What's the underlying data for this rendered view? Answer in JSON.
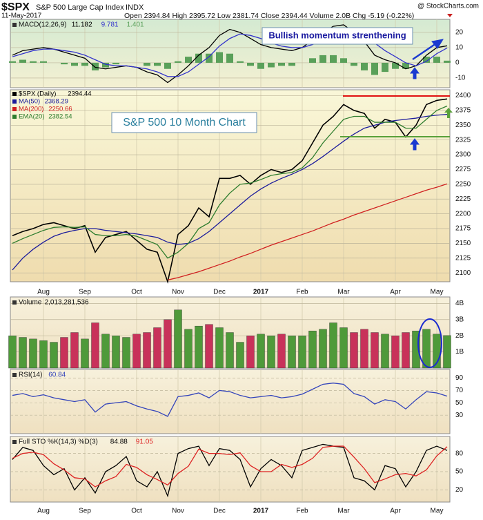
{
  "header": {
    "symbol": "$SPX",
    "name": "S&P 500 Large Cap Index",
    "exchange": "INDX",
    "source": "@ StockCharts.com",
    "date": "11-May-2017",
    "stats": "Open 2394.84 High 2395.72 Low 2381.74 Close 2394.44 Volume 2.0B Chg -5.19 (-0.22%)"
  },
  "chart_data": [
    {
      "type": "line",
      "title": "MACD(12,26,9)",
      "annotation": "Bullish momentum strenthening",
      "ylim": [
        -16.4,
        28.6
      ],
      "yticks": [
        -10,
        0,
        10,
        20
      ],
      "series": [
        {
          "type": "bar",
          "color": "#5aa05a",
          "values": [
            1,
            2,
            1,
            1,
            0,
            -1,
            -2,
            -2,
            -5,
            -3,
            -1,
            0,
            0,
            -2,
            -2,
            -4,
            1,
            4,
            6,
            6,
            7,
            6,
            1,
            -2,
            -4,
            -3,
            -2,
            -2,
            0,
            3,
            5,
            5,
            3,
            -2,
            -5,
            -8,
            -6,
            -4,
            -4,
            0,
            4,
            4,
            1.401
          ]
        },
        {
          "color": "#000000",
          "values": [
            5,
            8,
            9,
            10,
            9,
            7,
            5,
            3,
            -3,
            -4,
            -3,
            -2,
            -3,
            -6,
            -8,
            -13,
            -8,
            -2,
            5,
            10,
            18,
            22,
            20,
            16,
            12,
            10,
            9,
            8,
            10,
            15,
            20,
            24,
            25,
            20,
            14,
            5,
            2,
            0,
            -4,
            -2,
            5,
            10,
            11.182
          ]
        },
        {
          "color": "#3333cc",
          "values": [
            4,
            6,
            8,
            9,
            9,
            8,
            7,
            5,
            2,
            -1,
            -2,
            -2,
            -3,
            -4,
            -6,
            -9,
            -9,
            -6,
            -1,
            4,
            11,
            16,
            19,
            18,
            16,
            13,
            11,
            10,
            10,
            12,
            15,
            19,
            22,
            22,
            19,
            13,
            8,
            4,
            0,
            -2,
            1,
            6,
            9.781
          ]
        }
      ]
    },
    {
      "type": "line",
      "annotation": "S&P 500 10 Month Chart",
      "categories": [
        null,
        null,
        null,
        "Aug",
        null,
        null,
        null,
        "Sep",
        null,
        null,
        null,
        null,
        "Oct",
        null,
        null,
        null,
        "Nov",
        null,
        null,
        null,
        "Dec",
        null,
        null,
        null,
        "2017",
        null,
        null,
        null,
        "Feb",
        null,
        null,
        null,
        "Mar",
        null,
        null,
        null,
        null,
        "Apr",
        null,
        null,
        null,
        "May",
        null
      ],
      "ylim": [
        2085,
        2410
      ],
      "yticks": [
        2100,
        2125,
        2150,
        2175,
        2200,
        2225,
        2250,
        2275,
        2300,
        2325,
        2350,
        2375,
        2400
      ],
      "series": [
        {
          "name": "$SPX (Daily)",
          "color": "#000000",
          "values": [
            2163,
            2170,
            2175,
            2182,
            2185,
            2180,
            2175,
            2180,
            2135,
            2160,
            2165,
            2170,
            2155,
            2140,
            2135,
            2085,
            2165,
            2180,
            2210,
            2195,
            2260,
            2260,
            2265,
            2250,
            2265,
            2275,
            2270,
            2275,
            2290,
            2320,
            2350,
            2365,
            2385,
            2375,
            2370,
            2345,
            2360,
            2355,
            2330,
            2350,
            2385,
            2392,
            2394.44
          ]
        },
        {
          "name": "MA(50)",
          "color": "#1c1c9c",
          "values": [
            2105,
            2125,
            2140,
            2152,
            2162,
            2168,
            2172,
            2175,
            2175,
            2172,
            2170,
            2168,
            2166,
            2163,
            2160,
            2152,
            2148,
            2150,
            2158,
            2170,
            2185,
            2200,
            2215,
            2230,
            2242,
            2252,
            2260,
            2267,
            2275,
            2285,
            2297,
            2310,
            2323,
            2335,
            2345,
            2350,
            2355,
            2358,
            2360,
            2362,
            2365,
            2367,
            2368.29
          ]
        },
        {
          "name": "MA(200)",
          "color": "#d02020",
          "values": [
            null,
            null,
            null,
            null,
            null,
            null,
            null,
            null,
            null,
            null,
            null,
            null,
            null,
            null,
            null,
            2088,
            2092,
            2097,
            2102,
            2108,
            2114,
            2120,
            2127,
            2133,
            2140,
            2147,
            2153,
            2159,
            2165,
            2171,
            2178,
            2185,
            2191,
            2198,
            2204,
            2210,
            2216,
            2222,
            2228,
            2234,
            2240,
            2245,
            2250.66
          ]
        },
        {
          "name": "EMA(20)",
          "color": "#2e7d2e",
          "values": [
            2150,
            2158,
            2165,
            2172,
            2177,
            2178,
            2177,
            2178,
            2165,
            2163,
            2163,
            2165,
            2162,
            2155,
            2148,
            2125,
            2135,
            2150,
            2175,
            2185,
            2215,
            2235,
            2250,
            2252,
            2258,
            2265,
            2268,
            2270,
            2278,
            2295,
            2320,
            2340,
            2360,
            2365,
            2365,
            2355,
            2355,
            2355,
            2345,
            2345,
            2360,
            2375,
            2382.54
          ]
        }
      ]
    },
    {
      "type": "bar",
      "title": "Volume",
      "up_color": "#4f9a3a",
      "down_color": "#c8325a",
      "ylim": [
        0,
        4.4
      ],
      "yticks": [
        {
          "value": 1,
          "label": "1B"
        },
        {
          "value": 2,
          "label": "2B"
        },
        {
          "value": 3,
          "label": "3B"
        },
        {
          "value": 4,
          "label": "4B"
        }
      ],
      "values": [
        2.0,
        1.9,
        1.8,
        1.7,
        1.6,
        1.9,
        2.2,
        1.8,
        2.8,
        2.1,
        2.0,
        1.9,
        2.1,
        2.2,
        2.5,
        3.0,
        3.6,
        2.4,
        2.6,
        2.7,
        2.5,
        2.2,
        1.6,
        2.0,
        2.1,
        2.0,
        2.1,
        2.0,
        2.0,
        2.3,
        2.4,
        2.8,
        2.5,
        2.2,
        2.4,
        2.2,
        2.1,
        2.0,
        2.2,
        2.3,
        2.4,
        2.1,
        2.013281536
      ],
      "value_labels": [
        null,
        null,
        null,
        null,
        null,
        null,
        null,
        null,
        null,
        null,
        null,
        null,
        null,
        null,
        null,
        null,
        null,
        null,
        null,
        null,
        null,
        null,
        null,
        null,
        null,
        null,
        null,
        null,
        null,
        null,
        null,
        null,
        null,
        null,
        null,
        null,
        null,
        null,
        null,
        null,
        null,
        null,
        "2,013,281,536"
      ]
    },
    {
      "type": "line",
      "title": "RSI(14)",
      "ylim": [
        0,
        104
      ],
      "yticks": [
        30,
        50,
        70,
        90
      ],
      "series": [
        {
          "color": "#3344bb",
          "values": [
            62,
            65,
            60,
            63,
            58,
            55,
            52,
            55,
            35,
            48,
            50,
            52,
            45,
            40,
            36,
            28,
            60,
            62,
            66,
            58,
            70,
            68,
            62,
            58,
            60,
            62,
            58,
            60,
            64,
            72,
            80,
            82,
            80,
            65,
            60,
            48,
            55,
            52,
            40,
            55,
            68,
            66,
            60.84
          ]
        }
      ]
    },
    {
      "type": "line",
      "title": "Full STO %K(14,3) %D(3)",
      "ylim": [
        0,
        108
      ],
      "yticks": [
        20,
        50,
        80
      ],
      "categories": [
        null,
        null,
        null,
        "Aug",
        null,
        null,
        null,
        "Sep",
        null,
        null,
        null,
        null,
        "Oct",
        null,
        null,
        null,
        "Nov",
        null,
        null,
        null,
        "Dec",
        null,
        null,
        null,
        "2017",
        null,
        null,
        null,
        "Feb",
        null,
        null,
        null,
        "Mar",
        null,
        null,
        null,
        null,
        "Apr",
        null,
        null,
        null,
        "May",
        null
      ],
      "series": [
        {
          "color": "#000000",
          "values": [
            70,
            90,
            85,
            60,
            45,
            55,
            20,
            40,
            15,
            50,
            60,
            75,
            35,
            25,
            50,
            10,
            80,
            88,
            92,
            60,
            88,
            85,
            70,
            25,
            55,
            70,
            60,
            40,
            85,
            90,
            95,
            92,
            90,
            40,
            35,
            20,
            60,
            55,
            25,
            50,
            85,
            92,
            84.88
          ]
        },
        {
          "color": "#dd2222",
          "values": [
            72,
            80,
            82,
            78,
            63,
            53,
            40,
            38,
            25,
            35,
            42,
            62,
            57,
            45,
            37,
            28,
            47,
            59,
            87,
            80,
            80,
            78,
            81,
            60,
            50,
            50,
            62,
            57,
            62,
            72,
            90,
            92,
            92,
            74,
            55,
            32,
            38,
            45,
            47,
            43,
            53,
            76,
            91.05
          ]
        }
      ]
    }
  ]
}
